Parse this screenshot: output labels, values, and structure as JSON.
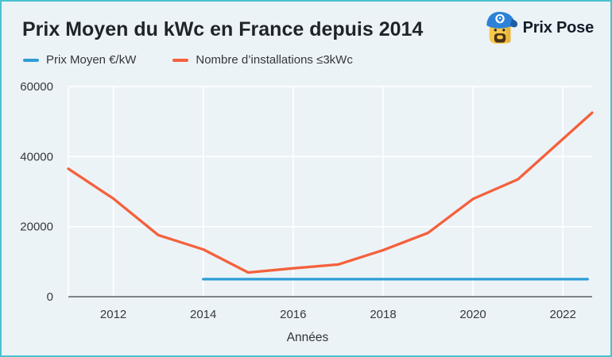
{
  "header": {
    "title": "Prix Moyen du kWc en France depuis 2014",
    "brand_name": "Prix Pose"
  },
  "legend": [
    {
      "label": "Prix Moyen €/kW",
      "color": "#2e9dd8"
    },
    {
      "label": "Nombre d’installations ≤3kWc",
      "color": "#f4613c"
    }
  ],
  "chart_data": {
    "type": "line",
    "title": "Prix Moyen du kWc en France depuis 2014",
    "xlabel": "Années",
    "ylabel": "",
    "xlim": [
      2011,
      2022.65
    ],
    "ylim": [
      0,
      60000
    ],
    "x_ticks": [
      2012,
      2014,
      2016,
      2018,
      2020,
      2022
    ],
    "y_ticks": [
      0,
      20000,
      40000,
      60000
    ],
    "grid": true,
    "legend_position": "top-left",
    "series": [
      {
        "name": "Prix Moyen €/kW",
        "color": "#2e9dd8",
        "x": [
          2014,
          2022.55
        ],
        "y": [
          5000,
          5000
        ]
      },
      {
        "name": "Nombre d’installations ≤3kWc",
        "color": "#f4613c",
        "x": [
          2011,
          2012,
          2013,
          2014,
          2015,
          2016,
          2017,
          2018,
          2019,
          2020,
          2021,
          2022.65
        ],
        "y": [
          36500,
          28000,
          17600,
          13500,
          6900,
          8100,
          9200,
          13300,
          18200,
          27900,
          33500,
          52500
        ]
      }
    ]
  },
  "theme": {
    "page_background": "#ecf3f7",
    "page_border": "#4ac2cf",
    "grid_color": "#ffffff",
    "axis_color": "#5c6066",
    "tick_label_color": "#35393d",
    "axis_title_color": "#2e3338",
    "title_color": "#1f2428"
  }
}
